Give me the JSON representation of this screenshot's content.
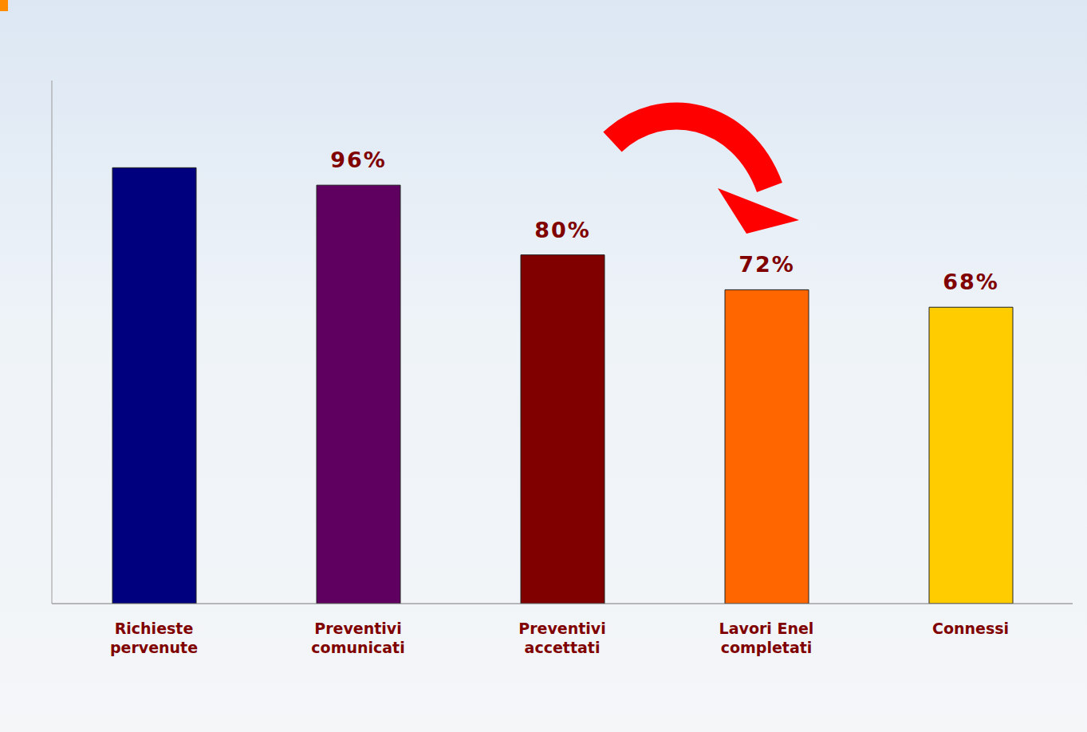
{
  "chart_data": {
    "type": "bar",
    "categories": [
      "Richieste pervenute",
      "Preventivi comunicati",
      "Preventivi accettati",
      "Lavori Enel completati",
      "Connessi"
    ],
    "values": [
      100,
      96,
      80,
      72,
      68
    ],
    "value_labels": [
      null,
      "96%",
      "80%",
      "72%",
      "68%"
    ],
    "data_labels": true,
    "colors": [
      "#00007f",
      "#5f0060",
      "#800000",
      "#ff6600",
      "#ffcc00"
    ],
    "ylim": [
      0,
      120
    ],
    "tick_labels": "x",
    "grid": false
  }
}
